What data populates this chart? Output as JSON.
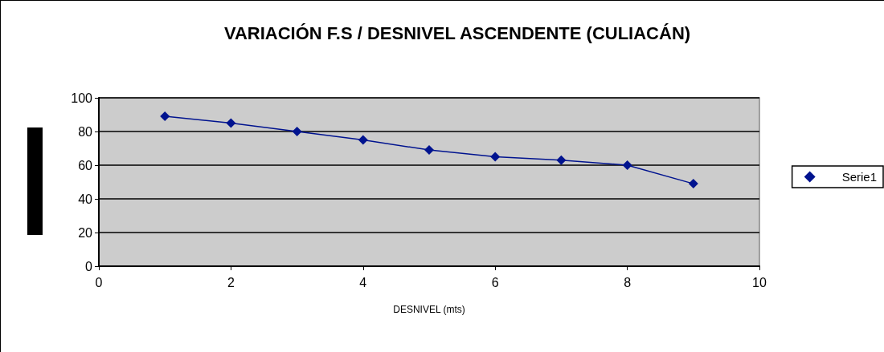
{
  "chart_data": {
    "type": "line",
    "title": "VARIACIÓN F.S / DESNIVEL ASCENDENTE (CULIACÁN)",
    "xlabel": "DESNIVEL (mts)",
    "x": [
      1,
      2,
      3,
      4,
      5,
      6,
      7,
      8,
      9
    ],
    "series": [
      {
        "name": "Serie1",
        "color": "#00138f",
        "values": [
          89,
          85,
          80,
          75,
          69,
          65,
          63,
          60,
          49
        ]
      }
    ],
    "xlim": [
      0,
      10
    ],
    "xticks": [
      0,
      2,
      4,
      6,
      8,
      10
    ],
    "ylim": [
      0,
      100
    ],
    "yticks": [
      0,
      20,
      40,
      60,
      80,
      100
    ],
    "grid": "y",
    "legend": "right",
    "marker": "diamond",
    "line_style": "solid"
  }
}
